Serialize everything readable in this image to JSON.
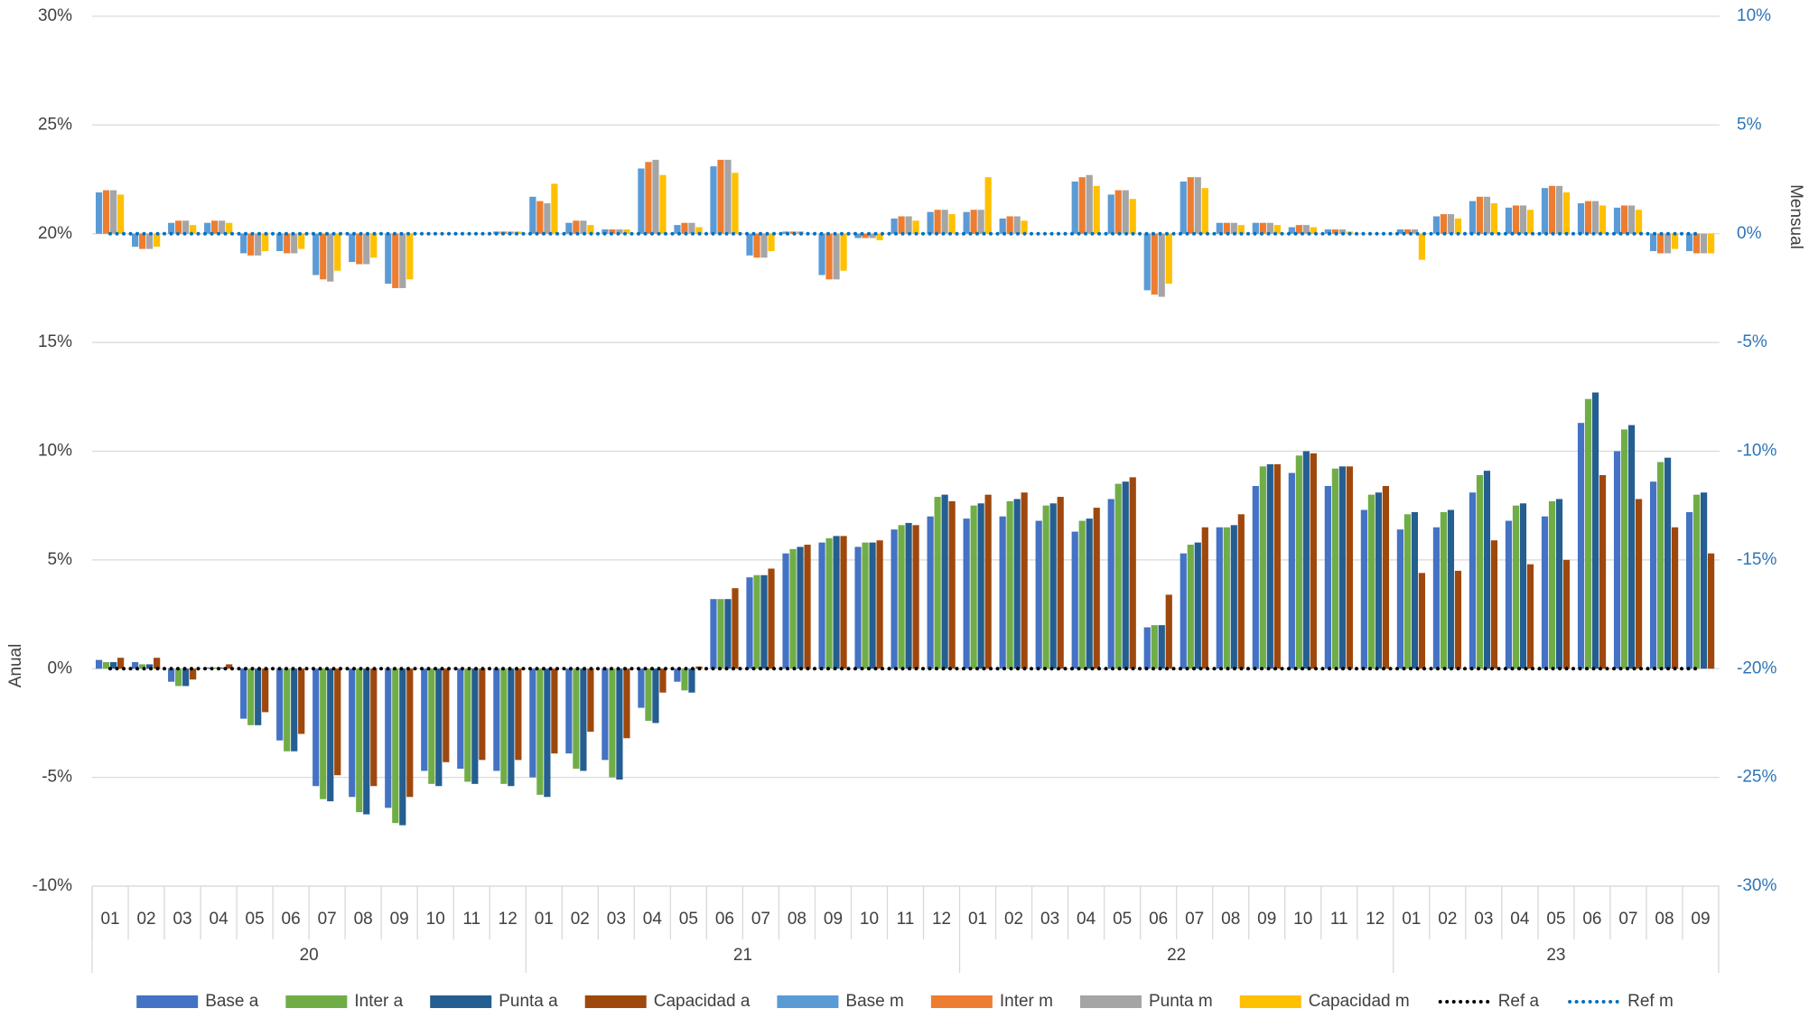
{
  "chart_data": {
    "type": "bar",
    "categories": [
      "01",
      "02",
      "03",
      "04",
      "05",
      "06",
      "07",
      "08",
      "09",
      "10",
      "11",
      "12",
      "01",
      "02",
      "03",
      "04",
      "05",
      "06",
      "07",
      "08",
      "09",
      "10",
      "11",
      "12",
      "01",
      "02",
      "03",
      "04",
      "05",
      "06",
      "07",
      "08",
      "09",
      "10",
      "11",
      "12",
      "01",
      "02",
      "03",
      "04",
      "05",
      "06",
      "07",
      "08",
      "09"
    ],
    "groups": [
      "20",
      "21",
      "22",
      "23"
    ],
    "ylabel": "Anual",
    "y2label": "Mensual",
    "ylim": [
      -10,
      30
    ],
    "yticks": [
      {
        "value": -10,
        "label": "-10%"
      },
      {
        "value": -5,
        "label": "-5%"
      },
      {
        "value": 0,
        "label": "0%"
      },
      {
        "value": 5,
        "label": "5%"
      },
      {
        "value": 10,
        "label": "10%"
      },
      {
        "value": 15,
        "label": "15%"
      },
      {
        "value": 20,
        "label": "20%"
      },
      {
        "value": 25,
        "label": "25%"
      },
      {
        "value": 30,
        "label": "30%"
      }
    ],
    "y2lim": [
      -30,
      10
    ],
    "y2ticks": [
      {
        "value": -30,
        "label": "-30%"
      },
      {
        "value": -25,
        "label": "-25%"
      },
      {
        "value": -20,
        "label": "-20%"
      },
      {
        "value": -15,
        "label": "-15%"
      },
      {
        "value": -10,
        "label": "-10%"
      },
      {
        "value": -5,
        "label": "-5%"
      },
      {
        "value": 0,
        "label": "0%"
      },
      {
        "value": 5,
        "label": "5%"
      },
      {
        "value": 10,
        "label": "10%"
      }
    ],
    "grid": true,
    "legend": "bottom",
    "series": [
      {
        "name": "Base a",
        "color": "#4472c4",
        "values": [
          0.4,
          0.3,
          -0.6,
          0.05,
          -2.3,
          -3.3,
          -5.4,
          -5.9,
          -6.4,
          -4.7,
          -4.6,
          -4.7,
          -5.0,
          -3.9,
          -4.2,
          -1.8,
          -0.6,
          3.2,
          4.2,
          5.3,
          5.8,
          5.6,
          6.4,
          7.0,
          6.9,
          7.0,
          6.8,
          6.3,
          7.8,
          1.9,
          5.3,
          6.5,
          8.4,
          9.0,
          8.4,
          7.3,
          6.4,
          6.5,
          8.1,
          6.8,
          7.0,
          11.3,
          10.0,
          8.6,
          7.2
        ]
      },
      {
        "name": "Inter a",
        "color": "#70ad47",
        "values": [
          0.3,
          0.2,
          -0.8,
          0.05,
          -2.6,
          -3.8,
          -6.0,
          -6.6,
          -7.1,
          -5.3,
          -5.2,
          -5.3,
          -5.8,
          -4.6,
          -5.0,
          -2.4,
          -1.0,
          3.2,
          4.3,
          5.5,
          6.0,
          5.8,
          6.6,
          7.9,
          7.5,
          7.7,
          7.5,
          6.8,
          8.5,
          2.0,
          5.7,
          6.5,
          9.3,
          9.8,
          9.2,
          8.0,
          7.1,
          7.2,
          8.9,
          7.5,
          7.7,
          12.4,
          11.0,
          9.5,
          8.0
        ]
      },
      {
        "name": "Punta a",
        "color": "#255e91",
        "values": [
          0.3,
          0.2,
          -0.8,
          0.05,
          -2.6,
          -3.8,
          -6.1,
          -6.7,
          -7.2,
          -5.4,
          -5.3,
          -5.4,
          -5.9,
          -4.7,
          -5.1,
          -2.5,
          -1.1,
          3.2,
          4.3,
          5.6,
          6.1,
          5.8,
          6.7,
          8.0,
          7.6,
          7.8,
          7.6,
          6.9,
          8.6,
          2.0,
          5.8,
          6.6,
          9.4,
          10.0,
          9.3,
          8.1,
          7.2,
          7.3,
          9.1,
          7.6,
          7.8,
          12.7,
          11.2,
          9.7,
          8.1
        ]
      },
      {
        "name": "Capacidad a",
        "color": "#9e480e",
        "values": [
          0.5,
          0.5,
          -0.5,
          0.2,
          -2.0,
          -3.0,
          -4.9,
          -5.4,
          -5.9,
          -4.3,
          -4.2,
          -4.2,
          -3.9,
          -2.9,
          -3.2,
          -1.1,
          0.1,
          3.7,
          4.6,
          5.7,
          6.1,
          5.9,
          6.6,
          7.7,
          8.0,
          8.1,
          7.9,
          7.4,
          8.8,
          3.4,
          6.5,
          7.1,
          9.4,
          9.9,
          9.3,
          8.4,
          4.4,
          4.5,
          5.9,
          4.8,
          5.0,
          8.9,
          7.8,
          6.5,
          5.3
        ]
      },
      {
        "name": "Base m",
        "color": "#5b9bd5",
        "axis": "y2",
        "values": [
          1.9,
          -0.6,
          0.5,
          0.5,
          -0.9,
          -0.8,
          -1.9,
          -1.3,
          -2.3,
          0,
          0,
          0.1,
          1.7,
          0.5,
          0.2,
          3.0,
          0.4,
          3.1,
          -1.0,
          0.1,
          -1.9,
          -0.2,
          0.7,
          1.0,
          1.0,
          0.7,
          0,
          2.4,
          1.8,
          -2.6,
          2.4,
          0.5,
          0.5,
          0.3,
          0.2,
          0,
          0.2,
          0.8,
          1.5,
          1.2,
          2.1,
          1.4,
          1.2,
          -0.8,
          -0.8
        ]
      },
      {
        "name": "Inter m",
        "color": "#ed7d31",
        "axis": "y2",
        "values": [
          2.0,
          -0.7,
          0.6,
          0.6,
          -1.0,
          -0.9,
          -2.1,
          -1.4,
          -2.5,
          0,
          0,
          0.1,
          1.5,
          0.6,
          0.2,
          3.3,
          0.5,
          3.4,
          -1.1,
          0.1,
          -2.1,
          -0.2,
          0.8,
          1.1,
          1.1,
          0.8,
          0,
          2.6,
          2.0,
          -2.8,
          2.6,
          0.5,
          0.5,
          0.4,
          0.2,
          0,
          0.2,
          0.9,
          1.7,
          1.3,
          2.2,
          1.5,
          1.3,
          -0.9,
          -0.9
        ]
      },
      {
        "name": "Punta m",
        "color": "#a5a5a5",
        "axis": "y2",
        "values": [
          2.0,
          -0.7,
          0.6,
          0.6,
          -1.0,
          -0.9,
          -2.2,
          -1.4,
          -2.5,
          0,
          0,
          0.1,
          1.4,
          0.6,
          0.2,
          3.4,
          0.5,
          3.4,
          -1.1,
          0.1,
          -2.1,
          -0.2,
          0.8,
          1.1,
          1.1,
          0.8,
          0,
          2.7,
          2.0,
          -2.9,
          2.6,
          0.5,
          0.5,
          0.4,
          0.2,
          0,
          0.2,
          0.9,
          1.7,
          1.3,
          2.2,
          1.5,
          1.3,
          -0.9,
          -0.9
        ]
      },
      {
        "name": "Capacidad m",
        "color": "#ffc000",
        "axis": "y2",
        "values": [
          1.8,
          -0.6,
          0.4,
          0.5,
          -0.8,
          -0.7,
          -1.7,
          -1.1,
          -2.1,
          0,
          0,
          0.1,
          2.3,
          0.4,
          0.2,
          2.7,
          0.3,
          2.8,
          -0.8,
          0,
          -1.7,
          -0.3,
          0.6,
          0.9,
          2.6,
          0.6,
          0,
          2.2,
          1.6,
          -2.3,
          2.1,
          0.4,
          0.4,
          0.3,
          0.1,
          0,
          -1.2,
          0.7,
          1.4,
          1.1,
          1.9,
          1.3,
          1.1,
          -0.7,
          -0.9
        ]
      },
      {
        "name": "Ref a",
        "color": "#000000",
        "type": "line",
        "values": [
          0,
          0,
          0,
          0,
          0,
          0,
          0,
          0,
          0,
          0,
          0,
          0,
          0,
          0,
          0,
          0,
          0,
          0,
          0,
          0,
          0,
          0,
          0,
          0,
          0,
          0,
          0,
          0,
          0,
          0,
          0,
          0,
          0,
          0,
          0,
          0,
          0,
          0,
          0,
          0,
          0,
          0,
          0,
          0,
          0
        ]
      },
      {
        "name": "Ref m",
        "color": "#0070c0",
        "type": "line",
        "axis": "y2",
        "values": [
          0,
          0,
          0,
          0,
          0,
          0,
          0,
          0,
          0,
          0,
          0,
          0,
          0,
          0,
          0,
          0,
          0,
          0,
          0,
          0,
          0,
          0,
          0,
          0,
          0,
          0,
          0,
          0,
          0,
          0,
          0,
          0,
          0,
          0,
          0,
          0,
          0,
          0,
          0,
          0,
          0,
          0,
          0,
          0,
          0
        ]
      }
    ]
  }
}
